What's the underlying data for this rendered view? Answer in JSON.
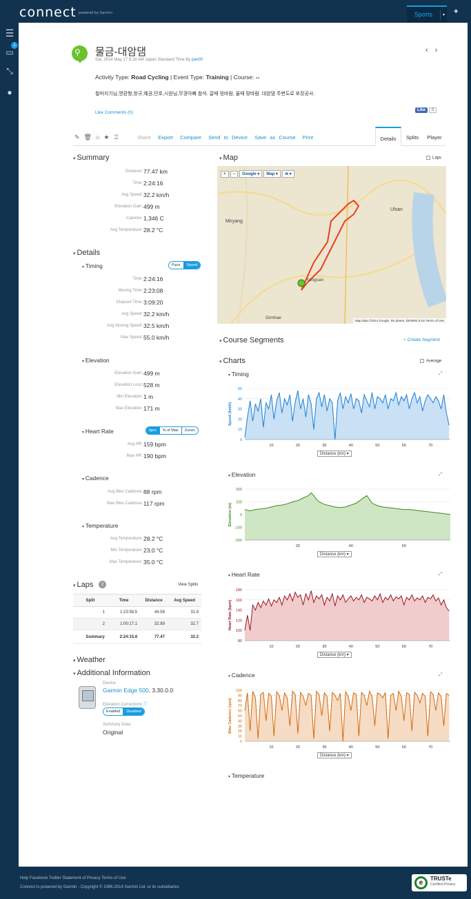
{
  "brand": {
    "name": "connect",
    "tagline": "powered by Garmin"
  },
  "topnav": {
    "sports_label": "Sports",
    "plus_label": "+"
  },
  "sidebar": {
    "notification_count": "1"
  },
  "activity": {
    "title": "물금-대암댐",
    "date_prefix": "Sat, 2014 May 17 8:18 AM Japan Standard Time By ",
    "owner": "pan00",
    "type_line_pre": "Activity Type: ",
    "type": "Road Cycling",
    "event_pre": " | Event Type: ",
    "event": "Training",
    "course_pre": " | Course: ",
    "course": "--",
    "description": "철마지기님,명환형,창규,혜권,민호,시원님,무경아빠 참석. 갈때 뒷바람, 올때 맞바람. 대암댐 주변도로 포장공사.",
    "like_comments": "Like Comments (0)",
    "fb_like": "Like",
    "fb_count": "0"
  },
  "toolbar": {
    "share": "Share",
    "export": "Export",
    "compare": "Compare",
    "send": "Send to Device",
    "save": "Save as Course",
    "print": "Print",
    "tabs": [
      "Details",
      "Splits",
      "Player"
    ]
  },
  "summary": {
    "title": "Summary",
    "rows": [
      {
        "k": "Distance:",
        "v": "77.47 km"
      },
      {
        "k": "Time:",
        "v": "2:24:16"
      },
      {
        "k": "Avg Speed:",
        "v": "32.2 km/h"
      },
      {
        "k": "Elevation Gain:",
        "v": "499 m"
      },
      {
        "k": "Calories:",
        "v": "1,346 C"
      },
      {
        "k": "Avg Temperature:",
        "v": "28.2 °C"
      }
    ]
  },
  "details": {
    "title": "Details",
    "timing": {
      "title": "Timing",
      "toggle": [
        "Pace",
        "Speed"
      ],
      "rows": [
        {
          "k": "Time:",
          "v": "2:24:16"
        },
        {
          "k": "Moving Time:",
          "v": "2:23:08"
        },
        {
          "k": "Elapsed Time:",
          "v": "3:09:20"
        },
        {
          "k": "Avg Speed:",
          "v": "32.2 km/h"
        },
        {
          "k": "Avg Moving Speed:",
          "v": "32.5 km/h"
        },
        {
          "k": "Max Speed:",
          "v": "55.0 km/h"
        }
      ]
    },
    "elevation": {
      "title": "Elevation",
      "rows": [
        {
          "k": "Elevation Gain:",
          "v": "499 m"
        },
        {
          "k": "Elevation Loss:",
          "v": "528 m"
        },
        {
          "k": "Min Elevation:",
          "v": "1 m"
        },
        {
          "k": "Max Elevation:",
          "v": "171 m"
        }
      ]
    },
    "heart_rate": {
      "title": "Heart Rate",
      "toggle": [
        "bpm",
        "% of Max",
        "Zones"
      ],
      "rows": [
        {
          "k": "Avg HR:",
          "v": "159 bpm"
        },
        {
          "k": "Max HR:",
          "v": "190 bpm"
        }
      ]
    },
    "cadence": {
      "title": "Cadence",
      "rows": [
        {
          "k": "Avg Bike Cadence:",
          "v": "88 rpm"
        },
        {
          "k": "Max Bike Cadence:",
          "v": "117 rpm"
        }
      ]
    },
    "temperature": {
      "title": "Temperature",
      "rows": [
        {
          "k": "Avg Temperature:",
          "v": "28.2 °C"
        },
        {
          "k": "Min Temperature:",
          "v": "23.0 °C"
        },
        {
          "k": "Max Temperature:",
          "v": "35.0 °C"
        }
      ]
    }
  },
  "laps": {
    "title": "Laps",
    "count": "2",
    "view_splits": "View Splits",
    "headers": [
      "Split",
      "Time",
      "Distance",
      "Avg Speed"
    ],
    "rows": [
      [
        "1",
        "1:23:58.5",
        "44.58",
        "31.9"
      ],
      [
        "2",
        "1:00:17.1",
        "32.89",
        "32.7"
      ]
    ],
    "summary": [
      "Summary",
      "2:24:15.6",
      "77.47",
      "32.2"
    ]
  },
  "weather": {
    "title": "Weather"
  },
  "additional": {
    "title": "Additional Information",
    "device_label": "Device:",
    "device": "Garmin Edge 500",
    "device_ver": ", 3.30.0.0",
    "elev_corr_label": "Elevation Corrections",
    "elev_toggle": [
      "Enabled",
      "Disabled"
    ],
    "summary_data_label": "Summary Data:",
    "summary_data": "Original"
  },
  "map": {
    "title": "Map",
    "laps_label": "Laps",
    "controls": [
      "+",
      "−",
      "Google ▾",
      "Map ▾",
      "≋ ▾"
    ],
    "labels": [
      "Ulsan",
      "Miryang",
      "Yangsan",
      "Gimhae"
    ],
    "attribution": "Map data ©2014 Google, SK planet, ZENRIN  5 km  Terms of Use"
  },
  "course_segments": {
    "title": "Course Segments",
    "create": "+ Create Segment"
  },
  "charts": {
    "title": "Charts",
    "average_label": "Average",
    "distance_select": "Distance (km) ▾",
    "collapsed": "Temperature"
  },
  "chart_data": [
    {
      "type": "area",
      "title": "Timing",
      "ylabel": "Speed (km/h)",
      "xlabel": "Distance (km)",
      "ylim": [
        0,
        50
      ],
      "yticks": [
        0,
        10,
        20,
        30,
        40,
        50
      ],
      "xticks": [
        10,
        20,
        30,
        40,
        50,
        60,
        70
      ],
      "xlim": [
        0,
        77.47
      ],
      "color": "#1a7fd4",
      "fill": "#c9e0f5",
      "x": [
        0,
        1,
        2,
        3,
        4,
        5,
        6,
        7,
        8,
        9,
        10,
        11,
        12,
        13,
        14,
        15,
        16,
        17,
        18,
        19,
        20,
        21,
        22,
        23,
        24,
        25,
        26,
        27,
        28,
        29,
        30,
        31,
        32,
        33,
        34,
        35,
        36,
        37,
        38,
        39,
        40,
        41,
        42,
        43,
        44,
        45,
        46,
        47,
        48,
        49,
        50,
        51,
        52,
        53,
        54,
        55,
        56,
        57,
        58,
        59,
        60,
        61,
        62,
        63,
        64,
        65,
        66,
        67,
        68,
        69,
        70,
        71,
        72,
        73,
        74,
        75,
        76,
        77
      ],
      "values": [
        2,
        22,
        38,
        18,
        35,
        28,
        40,
        12,
        36,
        30,
        44,
        20,
        38,
        46,
        26,
        40,
        34,
        44,
        18,
        37,
        48,
        30,
        40,
        22,
        44,
        35,
        10,
        40,
        46,
        32,
        44,
        28,
        40,
        36,
        0,
        38,
        46,
        30,
        42,
        36,
        45,
        30,
        40,
        38,
        26,
        44,
        38,
        32,
        46,
        30,
        42,
        40,
        36,
        44,
        30,
        40,
        38,
        46,
        34,
        42,
        38,
        44,
        30,
        40,
        46,
        36,
        42,
        28,
        38,
        44,
        40,
        36,
        42,
        38,
        30,
        44,
        26,
        14
      ]
    },
    {
      "type": "area",
      "title": "Elevation",
      "ylabel": "Elevation (m)",
      "xlabel": "Distance (km)",
      "ylim": [
        -200,
        200
      ],
      "yticks": [
        -200,
        -100,
        0,
        100,
        200
      ],
      "xticks": [
        20,
        40,
        60
      ],
      "xlim": [
        0,
        77.47
      ],
      "color": "#3a8a1e",
      "fill": "#cfe6c4",
      "x": [
        0,
        2,
        4,
        6,
        8,
        10,
        12,
        14,
        16,
        18,
        20,
        22,
        24,
        25,
        26,
        27,
        28,
        30,
        32,
        34,
        36,
        38,
        40,
        42,
        44,
        46,
        48,
        50,
        52,
        54,
        56,
        58,
        60,
        62,
        64,
        66,
        68,
        70,
        72,
        74,
        76,
        77.47
      ],
      "values": [
        40,
        30,
        40,
        45,
        50,
        60,
        70,
        75,
        85,
        100,
        110,
        130,
        150,
        171,
        150,
        120,
        100,
        80,
        70,
        60,
        55,
        60,
        75,
        90,
        120,
        150,
        90,
        70,
        60,
        55,
        50,
        45,
        40,
        40,
        35,
        30,
        25,
        20,
        15,
        10,
        5,
        1
      ]
    },
    {
      "type": "area",
      "title": "Heart Rate",
      "ylabel": "Heart Rate (bpm)",
      "xlabel": "Distance (km)",
      "ylim": [
        80,
        180
      ],
      "yticks": [
        80,
        100,
        120,
        140,
        160,
        180
      ],
      "xticks": [
        10,
        20,
        30,
        40,
        50,
        60,
        70
      ],
      "xlim": [
        0,
        77.47
      ],
      "color": "#9b1620",
      "fill": "#f0cccc",
      "x": [
        0,
        1,
        2,
        3,
        4,
        5,
        6,
        7,
        8,
        9,
        10,
        11,
        12,
        13,
        14,
        15,
        16,
        17,
        18,
        19,
        20,
        21,
        22,
        23,
        24,
        25,
        26,
        27,
        28,
        29,
        30,
        31,
        32,
        33,
        34,
        35,
        36,
        37,
        38,
        39,
        40,
        41,
        42,
        43,
        44,
        45,
        46,
        47,
        48,
        49,
        50,
        51,
        52,
        53,
        54,
        55,
        56,
        57,
        58,
        59,
        60,
        61,
        62,
        63,
        64,
        65,
        66,
        67,
        68,
        69,
        70,
        71,
        72,
        73,
        74,
        75,
        76,
        77
      ],
      "values": [
        100,
        130,
        100,
        150,
        140,
        155,
        145,
        158,
        150,
        162,
        148,
        160,
        155,
        165,
        150,
        168,
        160,
        172,
        158,
        175,
        165,
        170,
        150,
        172,
        160,
        178,
        155,
        168,
        162,
        170,
        150,
        165,
        158,
        172,
        148,
        168,
        160,
        170,
        155,
        162,
        168,
        158,
        165,
        160,
        170,
        155,
        165,
        162,
        158,
        168,
        160,
        172,
        155,
        165,
        160,
        170,
        158,
        166,
        162,
        168,
        150,
        165,
        160,
        170,
        158,
        164,
        160,
        168,
        155,
        165,
        162,
        170,
        158,
        164,
        150,
        160,
        145,
        138
      ]
    },
    {
      "type": "area",
      "title": "Cadence",
      "ylabel": "Bike Cadence (rpm)",
      "xlabel": "Distance (km)",
      "ylim": [
        0,
        100
      ],
      "yticks": [
        0,
        10,
        20,
        30,
        40,
        50,
        60,
        70,
        80,
        90,
        100
      ],
      "xticks": [
        10,
        20,
        30,
        40,
        50,
        60,
        70
      ],
      "xlim": [
        0,
        77.47
      ],
      "color": "#d2690e",
      "fill": "#f6dcc4",
      "x": [
        0,
        1,
        2,
        3,
        4,
        5,
        6,
        7,
        8,
        9,
        10,
        11,
        12,
        13,
        14,
        15,
        16,
        17,
        18,
        19,
        20,
        21,
        22,
        23,
        24,
        25,
        26,
        27,
        28,
        29,
        30,
        31,
        32,
        33,
        34,
        35,
        36,
        37,
        38,
        39,
        40,
        41,
        42,
        43,
        44,
        45,
        46,
        47,
        48,
        49,
        50,
        51,
        52,
        53,
        54,
        55,
        56,
        57,
        58,
        59,
        60,
        61,
        62,
        63,
        64,
        65,
        66,
        67,
        68,
        69,
        70,
        71,
        72,
        73,
        74,
        75,
        76,
        77
      ],
      "values": [
        60,
        95,
        20,
        98,
        85,
        5,
        92,
        96,
        40,
        94,
        88,
        10,
        97,
        90,
        60,
        95,
        85,
        30,
        98,
        92,
        15,
        96,
        88,
        70,
        94,
        90,
        5,
        98,
        92,
        50,
        95,
        88,
        20,
        96,
        90,
        80,
        94,
        0,
        97,
        88,
        60,
        95,
        92,
        10,
        96,
        90,
        70,
        98,
        88,
        30,
        95,
        92,
        85,
        96,
        5,
        90,
        94,
        60,
        98,
        88,
        40,
        95,
        92,
        20,
        96,
        90,
        75,
        94,
        88,
        10,
        97,
        92,
        60,
        95,
        88,
        30,
        94,
        90
      ]
    }
  ],
  "footer": {
    "links": "Help  Facebook  Twitter  Statement of Privacy  Terms of Use",
    "copyright": "Connect is powered by Garmin - Copyright © 1996-2014 Garmin Ltd. or its subsidiaries",
    "truste": "TRUSTe",
    "truste_sub": "Certified Privacy"
  }
}
